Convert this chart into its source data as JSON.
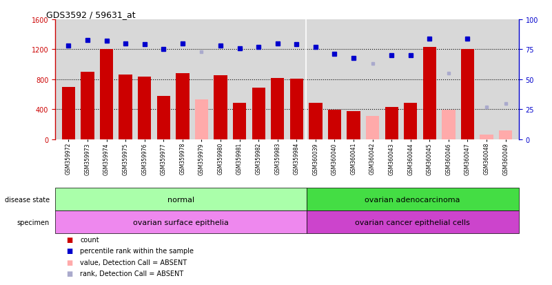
{
  "title": "GDS3592 / 59631_at",
  "samples": [
    "GSM359972",
    "GSM359973",
    "GSM359974",
    "GSM359975",
    "GSM359976",
    "GSM359977",
    "GSM359978",
    "GSM359979",
    "GSM359980",
    "GSM359981",
    "GSM359982",
    "GSM359983",
    "GSM359984",
    "GSM360039",
    "GSM360040",
    "GSM360041",
    "GSM360042",
    "GSM360043",
    "GSM360044",
    "GSM360045",
    "GSM360046",
    "GSM360047",
    "GSM360048",
    "GSM360049"
  ],
  "count_values": [
    700,
    900,
    1200,
    860,
    840,
    580,
    880,
    null,
    850,
    490,
    690,
    820,
    810,
    490,
    390,
    380,
    null,
    430,
    490,
    1230,
    null,
    1200,
    null,
    null
  ],
  "count_absent": [
    null,
    null,
    null,
    null,
    null,
    null,
    null,
    530,
    null,
    null,
    null,
    null,
    null,
    null,
    null,
    null,
    310,
    null,
    null,
    null,
    390,
    null,
    60,
    120
  ],
  "rank_values": [
    78,
    83,
    82,
    80,
    79,
    75,
    80,
    null,
    78,
    76,
    77,
    80,
    79,
    77,
    71,
    68,
    null,
    70,
    70,
    84,
    null,
    84,
    null,
    null
  ],
  "rank_absent": [
    null,
    null,
    null,
    null,
    null,
    null,
    null,
    73,
    null,
    null,
    null,
    null,
    null,
    null,
    null,
    null,
    63,
    null,
    null,
    null,
    55,
    null,
    27,
    30
  ],
  "n_samples": 24,
  "split_at": 13,
  "disease_state_1": "normal",
  "disease_state_2": "ovarian adenocarcinoma",
  "specimen_1": "ovarian surface epithelia",
  "specimen_2": "ovarian cancer epithelial cells",
  "color_red": "#cc0000",
  "color_pink": "#ffaaaa",
  "color_blue": "#0000cc",
  "color_blue_light": "#aaaacc",
  "color_green_light": "#aaffaa",
  "color_green_dark": "#44dd44",
  "color_pink_specimen": "#ee88ee",
  "color_magenta_specimen": "#cc44cc",
  "ylim_left": [
    0,
    1600
  ],
  "ylim_right": [
    0,
    100
  ],
  "yticks_left": [
    0,
    400,
    800,
    1200,
    1600
  ],
  "yticks_right": [
    0,
    25,
    50,
    75,
    100
  ],
  "bg_color": "#d8d8d8",
  "bar_width": 0.7
}
